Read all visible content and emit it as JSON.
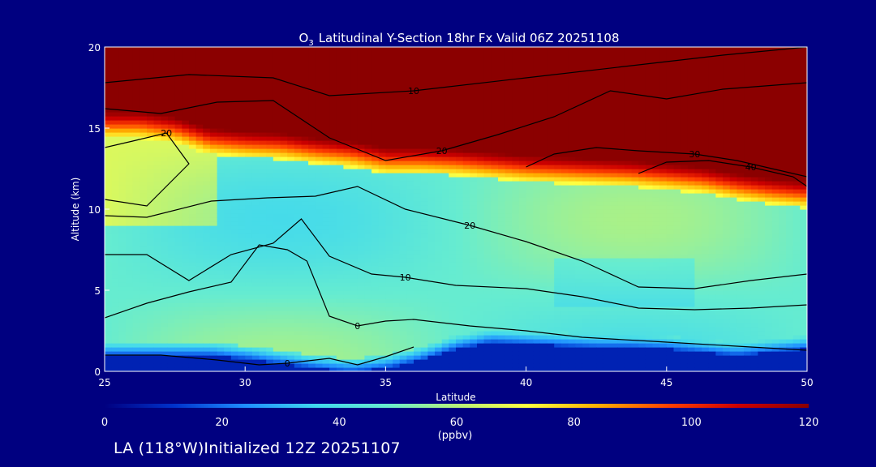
{
  "chart_data": {
    "type": "heatmap",
    "title": {
      "species_main": "O",
      "species_sub": "3",
      "text": "Latitudinal Y-Section 18hr  Fx Valid 06Z 20251108"
    },
    "xlabel": "Latitude",
    "ylabel": "Altitude (km)",
    "xlim": [
      25,
      50
    ],
    "ylim": [
      0,
      20
    ],
    "x_ticks": [
      25,
      30,
      35,
      40,
      45,
      50
    ],
    "y_ticks": [
      0,
      5,
      10,
      15,
      20
    ],
    "colorbar": {
      "min": 0,
      "max": 120,
      "ticks": [
        0,
        20,
        40,
        60,
        80,
        100,
        120
      ],
      "unit_label": "(ppbv)",
      "stops": [
        "#000080",
        "#0033cc",
        "#1f8fff",
        "#40d8ee",
        "#66ecd0",
        "#b6f27a",
        "#ffff40",
        "#ffb000",
        "#ff4000",
        "#cc0000",
        "#8b0000"
      ]
    },
    "fields_description_free": true,
    "tropopause_km": [
      14.8,
      14.8,
      14.5,
      13.8,
      13.6,
      13.5,
      13.2,
      13.0,
      12.6,
      12.6,
      12.5,
      12.3,
      12.1,
      12.0,
      11.9,
      11.8,
      11.6,
      11.4,
      11.0,
      10.7,
      10.5
    ],
    "surface_low_km": [
      1.0,
      1.0,
      1.0,
      1.0,
      0.8,
      0.5,
      0.2,
      0.0,
      0.2,
      0.7,
      1.4,
      1.8,
      1.7,
      1.6,
      1.5,
      1.5,
      1.4,
      1.2,
      1.0,
      1.2,
      1.4
    ],
    "contours": [
      {
        "label": "10",
        "x": [
          25,
          28,
          31,
          33,
          36,
          40,
          44,
          47,
          50
        ],
        "y": [
          17.8,
          18.3,
          18.1,
          17.0,
          17.3,
          18.1,
          18.9,
          19.5,
          20.0
        ]
      },
      {
        "label": "20",
        "x": [
          25,
          27,
          29,
          31,
          33,
          35,
          37,
          39,
          41,
          43,
          45,
          47,
          50
        ],
        "y": [
          16.2,
          15.9,
          16.6,
          16.7,
          14.4,
          13.0,
          13.6,
          14.6,
          15.7,
          17.3,
          16.8,
          17.4,
          17.8
        ]
      },
      {
        "label": "30",
        "x": [
          40,
          41,
          42.5,
          44,
          46,
          47.5,
          49,
          50
        ],
        "y": [
          12.6,
          13.4,
          13.8,
          13.6,
          13.4,
          13.0,
          12.4,
          12.0
        ]
      },
      {
        "label": "40",
        "x": [
          44,
          45,
          46.5,
          48,
          49.5,
          50
        ],
        "y": [
          12.2,
          12.9,
          13.0,
          12.6,
          12.0,
          11.4
        ]
      },
      {
        "label": "20",
        "x": [
          25,
          26.5,
          28,
          27.2,
          26,
          25
        ],
        "y": [
          10.6,
          10.2,
          12.8,
          14.7,
          14.2,
          13.8
        ]
      },
      {
        "label": "20",
        "x": [
          25,
          26.5,
          28.8,
          30.8,
          32.5,
          34,
          35.7,
          38,
          40,
          42,
          44,
          46,
          48,
          50
        ],
        "y": [
          9.6,
          9.5,
          10.5,
          10.7,
          10.8,
          11.4,
          10.0,
          9.0,
          8.0,
          6.8,
          5.2,
          5.1,
          5.6,
          6.0
        ]
      },
      {
        "label": "10",
        "x": [
          25,
          26.5,
          28,
          29.5,
          31,
          32,
          33,
          34.5,
          35.7,
          37.5,
          40,
          42,
          44,
          46,
          48,
          50
        ],
        "y": [
          7.2,
          7.2,
          5.6,
          7.2,
          7.9,
          9.4,
          7.1,
          6.0,
          5.8,
          5.3,
          5.1,
          4.6,
          3.9,
          3.8,
          3.9,
          4.1
        ]
      },
      {
        "label": "0",
        "x": [
          25,
          26.5,
          28,
          29.5,
          30.5,
          31.5,
          32.2,
          33,
          34,
          35,
          36,
          38,
          40,
          42,
          45,
          48,
          50
        ],
        "y": [
          3.3,
          4.2,
          4.9,
          5.5,
          7.8,
          7.5,
          6.8,
          3.4,
          2.8,
          3.1,
          3.2,
          2.8,
          2.5,
          2.1,
          1.8,
          1.5,
          1.3
        ]
      },
      {
        "label": "0",
        "x": [
          25,
          27,
          29,
          30.5,
          31.5,
          33,
          34,
          35,
          36
        ],
        "y": [
          1.0,
          1.0,
          0.7,
          0.4,
          0.5,
          0.8,
          0.4,
          0.9,
          1.5
        ]
      }
    ],
    "extra_tick_labels": [
      "0"
    ]
  },
  "footer": {
    "initialized_label": "LA (118°W)Initialized 12Z 20251107"
  }
}
